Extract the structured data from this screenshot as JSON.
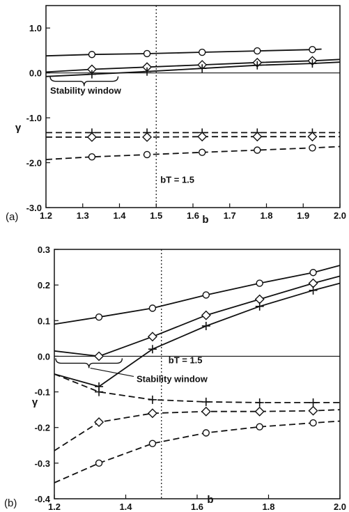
{
  "chart_data": [
    {
      "type": "line",
      "panel_label": "(a)",
      "xlabel": "b",
      "ylabel": "γ",
      "xlim": [
        1.2,
        2.0
      ],
      "ylim": [
        -3.0,
        1.5
      ],
      "x_ticks": [
        "1.2",
        "1.3",
        "1.4",
        "1.5",
        "1.6",
        "1.7",
        "1.8",
        "1.9",
        "2.0"
      ],
      "y_ticks": [
        "1.0",
        "0.0",
        "-1.0",
        "-2.0",
        "-3.0"
      ],
      "vline": {
        "x": 1.5,
        "label": "bT = 1.5"
      },
      "annotation": {
        "text": "Stability window",
        "x_from": 1.2,
        "x_to": 1.4
      },
      "series": [
        {
          "style": "solid",
          "marker": "circle",
          "x": [
            1.2,
            1.325,
            1.475,
            1.625,
            1.775,
            1.925,
            1.95
          ],
          "y": [
            0.38,
            0.41,
            0.43,
            0.46,
            0.49,
            0.52,
            0.53
          ]
        },
        {
          "style": "solid",
          "marker": "diamond",
          "x": [
            1.2,
            1.325,
            1.475,
            1.625,
            1.775,
            1.925,
            2.0
          ],
          "y": [
            0.02,
            0.08,
            0.13,
            0.18,
            0.23,
            0.27,
            0.3
          ]
        },
        {
          "style": "solid",
          "marker": "plus",
          "x": [
            1.2,
            1.325,
            1.475,
            1.625,
            1.775,
            1.925,
            2.0
          ],
          "y": [
            -0.08,
            -0.03,
            0.03,
            0.1,
            0.17,
            0.21,
            0.24
          ]
        },
        {
          "style": "dashed",
          "marker": "plus",
          "x": [
            1.2,
            1.325,
            1.475,
            1.625,
            1.775,
            1.925,
            2.0
          ],
          "y": [
            -1.33,
            -1.33,
            -1.33,
            -1.33,
            -1.33,
            -1.33,
            -1.33
          ]
        },
        {
          "style": "dashed",
          "marker": "diamond",
          "x": [
            1.2,
            1.325,
            1.475,
            1.625,
            1.775,
            1.925,
            2.0
          ],
          "y": [
            -1.43,
            -1.43,
            -1.43,
            -1.42,
            -1.42,
            -1.42,
            -1.42
          ]
        },
        {
          "style": "dashed",
          "marker": "circle",
          "x": [
            1.2,
            1.325,
            1.475,
            1.625,
            1.775,
            1.925,
            2.0
          ],
          "y": [
            -1.93,
            -1.87,
            -1.82,
            -1.77,
            -1.72,
            -1.67,
            -1.64
          ]
        }
      ]
    },
    {
      "type": "line",
      "panel_label": "(b)",
      "xlabel": "b",
      "ylabel": "γ",
      "xlim": [
        1.2,
        2.0
      ],
      "ylim": [
        -0.4,
        0.3
      ],
      "x_ticks": [
        "1.2",
        "1.4",
        "1.6",
        "1.8",
        "2.0"
      ],
      "y_ticks": [
        "0.3",
        "0.2",
        "0.1",
        "0.0",
        "-0.1",
        "-0.2",
        "-0.3",
        "-0.4"
      ],
      "vline": {
        "x": 1.5,
        "label": "bT = 1.5"
      },
      "annotation": {
        "text": "Stability window",
        "x_from": 1.2,
        "x_to": 1.39
      },
      "series": [
        {
          "style": "solid",
          "marker": "circle",
          "x": [
            1.2,
            1.325,
            1.475,
            1.625,
            1.775,
            1.925,
            2.0
          ],
          "y": [
            0.09,
            0.11,
            0.135,
            0.172,
            0.205,
            0.235,
            0.255
          ]
        },
        {
          "style": "solid",
          "marker": "diamond",
          "x": [
            1.2,
            1.325,
            1.475,
            1.625,
            1.775,
            1.925,
            2.0
          ],
          "y": [
            0.015,
            0.0,
            0.055,
            0.115,
            0.16,
            0.205,
            0.225
          ]
        },
        {
          "style": "solid",
          "marker": "plus",
          "x": [
            1.2,
            1.325,
            1.475,
            1.625,
            1.775,
            1.925,
            2.0
          ],
          "y": [
            -0.05,
            -0.085,
            0.02,
            0.085,
            0.14,
            0.185,
            0.205
          ]
        },
        {
          "style": "dashed",
          "marker": "plus",
          "x": [
            1.2,
            1.325,
            1.475,
            1.625,
            1.775,
            1.925,
            2.0
          ],
          "y": [
            -0.05,
            -0.1,
            -0.122,
            -0.128,
            -0.13,
            -0.13,
            -0.13
          ]
        },
        {
          "style": "dashed",
          "marker": "diamond",
          "x": [
            1.2,
            1.325,
            1.475,
            1.625,
            1.775,
            1.925,
            2.0
          ],
          "y": [
            -0.265,
            -0.185,
            -0.16,
            -0.155,
            -0.155,
            -0.153,
            -0.15
          ]
        },
        {
          "style": "dashed",
          "marker": "circle",
          "x": [
            1.2,
            1.325,
            1.475,
            1.625,
            1.775,
            1.925,
            2.0
          ],
          "y": [
            -0.355,
            -0.3,
            -0.245,
            -0.215,
            -0.198,
            -0.187,
            -0.182
          ]
        }
      ]
    }
  ]
}
